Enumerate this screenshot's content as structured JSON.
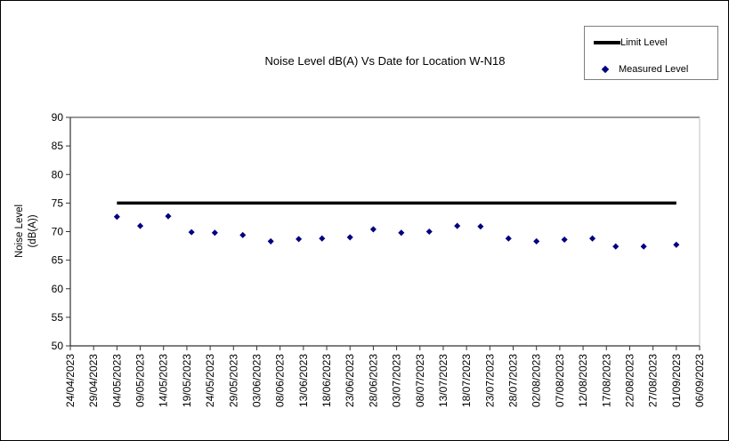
{
  "window": {
    "background": "#ffffff",
    "border_color": "#000000"
  },
  "chart_data": {
    "type": "scatter",
    "title": "Noise Level dB(A) Vs Date for Location W-N18",
    "xlabel": "",
    "ylabel": "Noise Level (dB(A))",
    "ylabel_lines": [
      "Noise Level",
      "(dB(A))"
    ],
    "ylim": [
      50,
      90
    ],
    "y_ticks": [
      50,
      55,
      60,
      65,
      70,
      75,
      80,
      85,
      90
    ],
    "x_tick_labels": [
      "24/04/2023",
      "29/04/2023",
      "04/05/2023",
      "09/05/2023",
      "14/05/2023",
      "19/05/2023",
      "24/05/2023",
      "29/05/2023",
      "03/06/2023",
      "08/06/2023",
      "13/06/2023",
      "18/06/2023",
      "23/06/2023",
      "28/06/2023",
      "03/07/2023",
      "08/07/2023",
      "13/07/2023",
      "18/07/2023",
      "23/07/2023",
      "28/07/2023",
      "02/08/2023",
      "07/08/2023",
      "12/08/2023",
      "17/08/2023",
      "22/08/2023",
      "27/08/2023",
      "01/09/2023",
      "06/09/2023"
    ],
    "x_range": [
      "24/04/2023",
      "06/09/2023"
    ],
    "grid": false,
    "legend_position": "top-right",
    "axis_color": "#333333",
    "tick_label_color": "#000000",
    "series": [
      {
        "name": "Limit Level",
        "type": "line",
        "color": "#000000",
        "line_width": 3.5,
        "x": [
          "04/05/2023",
          "01/09/2023"
        ],
        "values": [
          75,
          75
        ]
      },
      {
        "name": "Measured Level",
        "type": "scatter",
        "marker": "diamond",
        "color": "#000080",
        "x": [
          "04/05/2023",
          "09/05/2023",
          "15/05/2023",
          "20/05/2023",
          "25/05/2023",
          "31/05/2023",
          "06/06/2023",
          "12/06/2023",
          "17/06/2023",
          "23/06/2023",
          "28/06/2023",
          "04/07/2023",
          "10/07/2023",
          "16/07/2023",
          "21/07/2023",
          "27/07/2023",
          "02/08/2023",
          "08/08/2023",
          "14/08/2023",
          "19/08/2023",
          "25/08/2023",
          "01/09/2023"
        ],
        "values": [
          72.6,
          71.0,
          72.7,
          69.9,
          69.8,
          69.4,
          68.3,
          68.7,
          68.8,
          69.0,
          70.4,
          69.8,
          70.0,
          71.0,
          70.9,
          68.8,
          68.3,
          68.6,
          68.8,
          67.4,
          67.4,
          67.7
        ]
      }
    ]
  }
}
